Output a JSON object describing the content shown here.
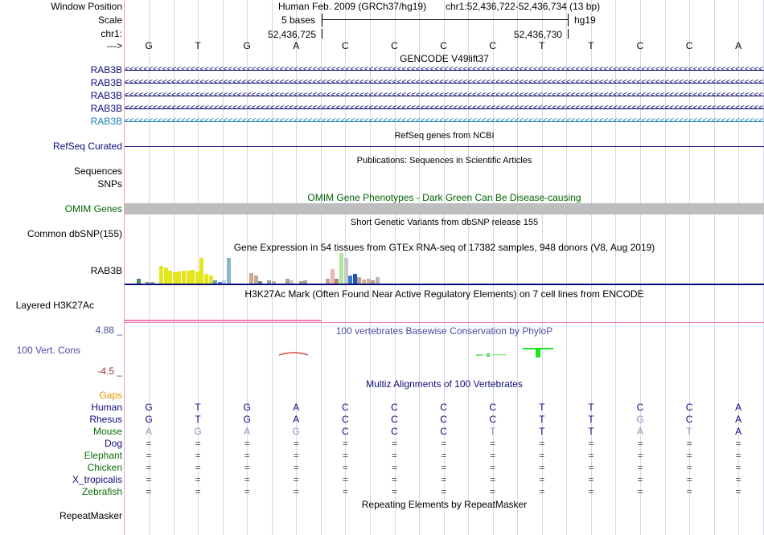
{
  "labels": {
    "window_position": "Window Position",
    "scale": "Scale",
    "chr": "chr1:",
    "arrow": "--->",
    "gencode_genes": [
      "RAB3B",
      "RAB3B",
      "RAB3B",
      "RAB3B",
      "RAB3B"
    ],
    "refseq": "RefSeq Curated",
    "sequences": "Sequences",
    "snps": "SNPs",
    "omim": "OMIM Genes",
    "dbsnp": "Common dbSNP(155)",
    "gtex_gene": "RAB3B",
    "h3k27": "Layered H3K27Ac",
    "cons_max": "4.88 _",
    "cons_label": "100 Vert. Cons",
    "cons_min": "-4.5 _",
    "gaps": "Gaps",
    "species": [
      "Human",
      "Rhesus",
      "Mouse",
      "Dog",
      "Elephant",
      "Chicken",
      "X_tropicalis",
      "Zebrafish"
    ],
    "repeatmasker": "RepeatMasker"
  },
  "colors": {
    "navy": "#0c0c78",
    "gencode_last": "#1a82b3",
    "omim_green": "#006400",
    "cons_axis": "#4a4aa0",
    "cons_min": "#a03232",
    "gaps_orange": "#e69600",
    "species_green": "#0a6e0a",
    "grid": "#d7d7ec"
  },
  "header": {
    "assembly": "Human Feb. 2009 (GRCh37/hg19)",
    "position": "chr1:52,436,722-52,436,734 (13 bp)",
    "scale_text": "5 bases",
    "db": "hg19",
    "coord_left": "52,436,725",
    "coord_right": "52,436,730"
  },
  "sequence": [
    "G",
    "T",
    "G",
    "A",
    "C",
    "C",
    "C",
    "C",
    "T",
    "T",
    "C",
    "C",
    "A"
  ],
  "tracks": {
    "gencode_title": "GENCODE V49lift37",
    "refseq_title": "RefSeq genes from NCBI",
    "publications_title": "Publications: Sequences in Scientific Articles",
    "omim_title": "OMIM Gene Phenotypes - Dark Green Can Be Disease-causing",
    "dbsnp_title": "Short Genetic Variants from dbSNP release 155",
    "gtex_title": "Gene Expression in 54 tissues from GTEx RNA-seq of 17382 samples, 948 donors (V8, Aug 2019)",
    "h3k27_title": "H3K27Ac Mark (Often Found Near Active Regulatory Elements) on 7 cell lines from ENCODE",
    "phylop_title": "100 vertebrates Basewise Conservation by PhyloP",
    "multiz_title": "Multiz Alignments of 100 Vertebrates",
    "repeat_title": "Repeating Elements by RepeatMasker"
  },
  "alignment": {
    "Human": [
      "G",
      "T",
      "G",
      "A",
      "C",
      "C",
      "C",
      "C",
      "T",
      "T",
      "C",
      "C",
      "A"
    ],
    "Rhesus": [
      "G",
      "T",
      "G",
      "A",
      "C",
      "C",
      "C",
      "C",
      "T",
      "T",
      "G",
      "C",
      "A"
    ],
    "Mouse": [
      "A",
      "G",
      "A",
      "G",
      "C",
      "C",
      "C",
      "T",
      "T",
      "T",
      "A",
      "T",
      "A"
    ],
    "Dog": [
      "=",
      "=",
      "=",
      "=",
      "=",
      "=",
      "=",
      "=",
      "=",
      "=",
      "=",
      "=",
      "="
    ],
    "Elephant": [
      "=",
      "=",
      "=",
      "=",
      "=",
      "=",
      "=",
      "=",
      "=",
      "=",
      "=",
      "=",
      "="
    ],
    "Chicken": [
      "=",
      "=",
      "=",
      "=",
      "=",
      "=",
      "=",
      "=",
      "=",
      "=",
      "=",
      "=",
      "="
    ],
    "X_tropicalis": [
      "=",
      "=",
      "=",
      "=",
      "=",
      "=",
      "=",
      "=",
      "=",
      "=",
      "=",
      "=",
      "="
    ],
    "Zebrafish": [
      "=",
      "=",
      "=",
      "=",
      "=",
      "=",
      "=",
      "=",
      "=",
      "=",
      "=",
      "=",
      "="
    ]
  },
  "alignment_mismatch": {
    "Rhesus": [
      false,
      false,
      false,
      false,
      false,
      false,
      false,
      false,
      false,
      false,
      true,
      false,
      false
    ],
    "Mouse": [
      true,
      true,
      true,
      true,
      false,
      false,
      false,
      true,
      false,
      false,
      true,
      true,
      false
    ]
  },
  "gtex_bars": [
    {
      "h": 6,
      "c": "#4c8e5a"
    },
    {
      "h": 0,
      "c": "#ffffff"
    },
    {
      "h": 2,
      "c": "#9a9a9a"
    },
    {
      "h": 2,
      "c": "#9a9a9a"
    },
    {
      "h": 0,
      "c": "#ffffff"
    },
    {
      "h": 22,
      "c": "#e6e61e"
    },
    {
      "h": 20,
      "c": "#e6e61e"
    },
    {
      "h": 16,
      "c": "#e6e61e"
    },
    {
      "h": 14,
      "c": "#e6e61e"
    },
    {
      "h": 15,
      "c": "#e6e61e"
    },
    {
      "h": 16,
      "c": "#e6e61e"
    },
    {
      "h": 16,
      "c": "#e6e61e"
    },
    {
      "h": 17,
      "c": "#e6e61e"
    },
    {
      "h": 15,
      "c": "#e6e61e"
    },
    {
      "h": 32,
      "c": "#e6e61e"
    },
    {
      "h": 12,
      "c": "#e6e61e"
    },
    {
      "h": 10,
      "c": "#e6e61e"
    },
    {
      "h": 4,
      "c": "#5aa0c8"
    },
    {
      "h": 2,
      "c": "#7080c0"
    },
    {
      "h": 4,
      "c": "#aad2e6"
    },
    {
      "h": 32,
      "c": "#8cb4c8"
    },
    {
      "h": 0,
      "c": "#ffffff"
    },
    {
      "h": 0,
      "c": "#ffffff"
    },
    {
      "h": 0,
      "c": "#ffffff"
    },
    {
      "h": 0,
      "c": "#ffffff"
    },
    {
      "h": 13,
      "c": "#c8aa8c"
    },
    {
      "h": 10,
      "c": "#c8aa8c"
    },
    {
      "h": 3,
      "c": "#7080a0"
    },
    {
      "h": 0,
      "c": "#ffffff"
    },
    {
      "h": 4,
      "c": "#a0a0a0"
    },
    {
      "h": 3,
      "c": "#b4b4b4"
    },
    {
      "h": 0,
      "c": "#ffffff"
    },
    {
      "h": 0,
      "c": "#ffffff"
    },
    {
      "h": 6,
      "c": "#b4a08c"
    },
    {
      "h": 4,
      "c": "#c8c8c8"
    },
    {
      "h": 0,
      "c": "#ffffff"
    },
    {
      "h": 3,
      "c": "#a0a0a0"
    },
    {
      "h": 4,
      "c": "#b4a08c"
    },
    {
      "h": 0,
      "c": "#ffffff"
    },
    {
      "h": 0,
      "c": "#ffffff"
    },
    {
      "h": 0,
      "c": "#ffffff"
    },
    {
      "h": 0,
      "c": "#ffffff"
    },
    {
      "h": 6,
      "c": "#c8a0a0"
    },
    {
      "h": 18,
      "c": "#f0b4b4"
    },
    {
      "h": 6,
      "c": "#a08c6e"
    },
    {
      "h": 38,
      "c": "#b4e6a0"
    },
    {
      "h": 32,
      "c": "#c8c8c8"
    },
    {
      "h": 10,
      "c": "#3c78c8"
    },
    {
      "h": 12,
      "c": "#1e50c8"
    },
    {
      "h": 8,
      "c": "#b4a08c"
    },
    {
      "h": 5,
      "c": "#d2b48c"
    },
    {
      "h": 6,
      "c": "#c8b4a0"
    },
    {
      "h": 4,
      "c": "#b4a08c"
    },
    {
      "h": 8,
      "c": "#b4b4b4"
    }
  ],
  "phylop": [
    -0.1,
    0,
    0,
    0,
    0,
    0,
    0,
    0.1,
    0.05,
    -0.3,
    0.4,
    0,
    -0.3
  ]
}
